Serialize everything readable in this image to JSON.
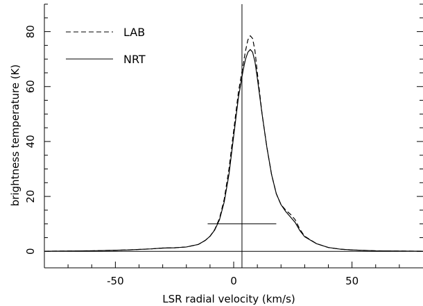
{
  "chart_data": {
    "type": "line",
    "xlabel": "LSR radial velocity (km/s)",
    "ylabel": "brightness temperature (K)",
    "xlim": [
      -80,
      80
    ],
    "ylim": [
      -6,
      90
    ],
    "x_ticks": [
      -50,
      0,
      50
    ],
    "y_ticks": [
      0,
      20,
      40,
      60,
      80
    ],
    "x_minor_step": 10,
    "y_minor_step": 5,
    "legend_position": "top-left",
    "series": [
      {
        "name": "LAB",
        "style": "dashed",
        "points": [
          [
            -80,
            0.05
          ],
          [
            -60,
            0.2
          ],
          [
            -45,
            0.5
          ],
          [
            -35,
            0.9
          ],
          [
            -30,
            1.2
          ],
          [
            -25,
            1.3
          ],
          [
            -20,
            1.6
          ],
          [
            -15,
            2.5
          ],
          [
            -12,
            4.0
          ],
          [
            -10,
            5.5
          ],
          [
            -8,
            8.0
          ],
          [
            -6,
            12.0
          ],
          [
            -4,
            19.0
          ],
          [
            -2,
            30.0
          ],
          [
            0,
            44.0
          ],
          [
            2,
            58.0
          ],
          [
            4,
            68.0
          ],
          [
            5,
            73.0
          ],
          [
            6,
            77.0
          ],
          [
            7,
            78.5
          ],
          [
            8,
            77.5
          ],
          [
            9,
            73.0
          ],
          [
            10,
            65.0
          ],
          [
            12,
            50.0
          ],
          [
            14,
            38.0
          ],
          [
            16,
            28.0
          ],
          [
            18,
            21.0
          ],
          [
            20,
            17.0
          ],
          [
            22,
            15.0
          ],
          [
            24,
            13.5
          ],
          [
            26,
            11.5
          ],
          [
            28,
            8.0
          ],
          [
            30,
            5.5
          ],
          [
            35,
            2.8
          ],
          [
            40,
            1.4
          ],
          [
            45,
            0.8
          ],
          [
            50,
            0.5
          ],
          [
            60,
            0.2
          ],
          [
            80,
            0.05
          ]
        ]
      },
      {
        "name": "NRT",
        "style": "solid",
        "points": [
          [
            -80,
            0.05
          ],
          [
            -60,
            0.2
          ],
          [
            -45,
            0.5
          ],
          [
            -35,
            0.9
          ],
          [
            -30,
            1.2
          ],
          [
            -25,
            1.3
          ],
          [
            -20,
            1.6
          ],
          [
            -15,
            2.5
          ],
          [
            -12,
            4.0
          ],
          [
            -10,
            5.5
          ],
          [
            -8,
            7.8
          ],
          [
            -6,
            11.5
          ],
          [
            -4,
            18.0
          ],
          [
            -2,
            28.0
          ],
          [
            0,
            42.0
          ],
          [
            2,
            56.0
          ],
          [
            4,
            66.0
          ],
          [
            5,
            70.0
          ],
          [
            6,
            72.5
          ],
          [
            7,
            73.5
          ],
          [
            8,
            72.5
          ],
          [
            9,
            69.0
          ],
          [
            10,
            63.0
          ],
          [
            12,
            50.0
          ],
          [
            14,
            38.0
          ],
          [
            16,
            28.0
          ],
          [
            18,
            21.0
          ],
          [
            20,
            17.0
          ],
          [
            22,
            14.5
          ],
          [
            24,
            12.5
          ],
          [
            26,
            10.5
          ],
          [
            28,
            7.5
          ],
          [
            30,
            5.3
          ],
          [
            35,
            2.8
          ],
          [
            40,
            1.4
          ],
          [
            45,
            0.8
          ],
          [
            50,
            0.5
          ],
          [
            60,
            0.2
          ],
          [
            80,
            0.05
          ]
        ]
      }
    ],
    "reference_lines": {
      "vertical_x": 3.5,
      "horizontal_y": 0,
      "segment": {
        "x_from": -11,
        "x_to": 18,
        "y": 10
      }
    }
  }
}
